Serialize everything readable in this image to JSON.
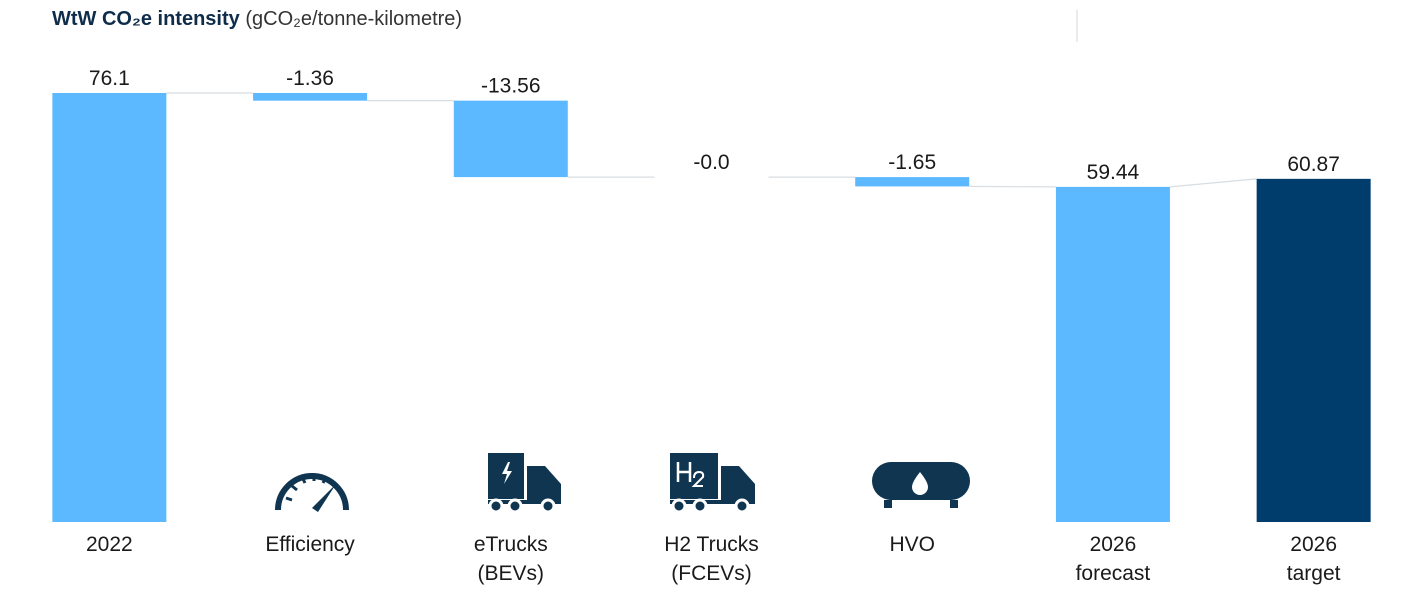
{
  "chart_data": {
    "type": "waterfall",
    "title": "WtW CO₂e intensity",
    "subtitle": "(gCO₂e/tonne-kilometre)",
    "categories": [
      "2022",
      "Efficiency",
      "eTrucks\n(BEVs)",
      "H2 Trucks\n(FCEVs)",
      "HVO",
      "2026\nforecast",
      "2026\ntarget"
    ],
    "values": [
      76.1,
      -1.36,
      -13.56,
      -0.0,
      -1.65,
      59.44,
      60.87
    ],
    "value_labels": [
      "76.1",
      "-1.36",
      "-13.56",
      "-0.0",
      "-1.65",
      "59.44",
      "60.87"
    ],
    "measure": [
      "absolute",
      "relative",
      "relative",
      "relative",
      "relative",
      "absolute",
      "absolute"
    ],
    "colors": [
      "#5cb8ff",
      "#5cb8ff",
      "#5cb8ff",
      "#5cb8ff",
      "#5cb8ff",
      "#5cb8ff",
      "#003c6c"
    ],
    "ylim": [
      0,
      80
    ]
  }
}
